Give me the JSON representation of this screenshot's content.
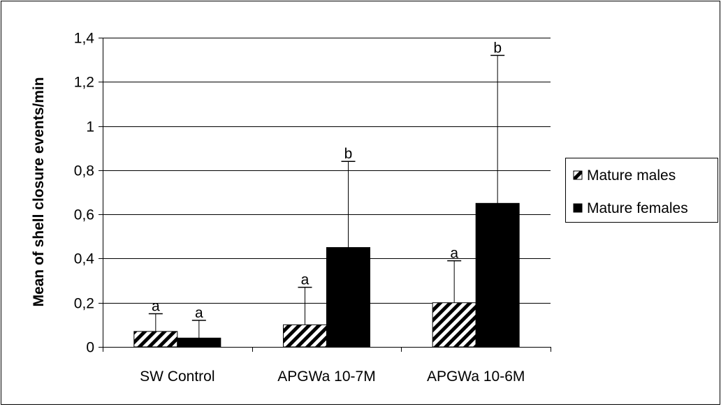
{
  "chart_data": {
    "type": "bar",
    "title": "",
    "xlabel": "",
    "ylabel": "Mean of shell closure events/min",
    "ylim": [
      0,
      1.4
    ],
    "yticks": [
      "0",
      "0,2",
      "0,4",
      "0,6",
      "0,8",
      "1",
      "1,2",
      "1,4"
    ],
    "ytick_values": [
      0,
      0.2,
      0.4,
      0.6,
      0.8,
      1.0,
      1.2,
      1.4
    ],
    "grid": true,
    "legend_position": "right",
    "categories": [
      "SW Control",
      "APGWa 10-7M",
      "APGWa 10-6M"
    ],
    "series": [
      {
        "name": "Mature males",
        "pattern": "diagonal-hatch",
        "color": "#000000",
        "values": [
          0.07,
          0.1,
          0.2
        ],
        "error_upper": [
          0.15,
          0.27,
          0.39
        ],
        "significance": [
          "a",
          "a",
          "a"
        ]
      },
      {
        "name": "Mature females",
        "pattern": "solid",
        "color": "#000000",
        "values": [
          0.04,
          0.45,
          0.65
        ],
        "error_upper": [
          0.12,
          0.84,
          1.32
        ],
        "significance": [
          "a",
          "b",
          "b"
        ]
      }
    ]
  }
}
